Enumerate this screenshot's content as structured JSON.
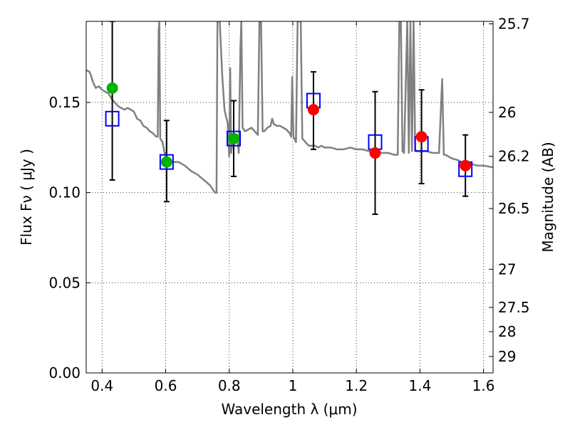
{
  "chart_data": {
    "type": "scatter",
    "xlabel": "Wavelength  λ (μm)",
    "ylabel": "Flux  Fν  ( μJy )",
    "ylabel_right": "Magnitude (AB)",
    "xlim": [
      0.35,
      1.63
    ],
    "ylim": [
      0.0,
      0.195
    ],
    "grid": true,
    "x_ticks": [
      {
        "value": 0.4,
        "label": "0.4"
      },
      {
        "value": 0.6,
        "label": "0.6"
      },
      {
        "value": 0.8,
        "label": "0.8"
      },
      {
        "value": 1.0,
        "label": "1"
      },
      {
        "value": 1.2,
        "label": "1.2"
      },
      {
        "value": 1.4,
        "label": "1.4"
      },
      {
        "value": 1.6,
        "label": "1.6"
      }
    ],
    "y_ticks": [
      {
        "value": 0.0,
        "label": "0.00"
      },
      {
        "value": 0.05,
        "label": "0.05"
      },
      {
        "value": 0.1,
        "label": "0.10"
      },
      {
        "value": 0.15,
        "label": "0.15"
      }
    ],
    "right_ticks": [
      {
        "flux": 0.1936,
        "label": "25.7"
      },
      {
        "flux": 0.1445,
        "label": "26"
      },
      {
        "flux": 0.1202,
        "label": "26.2"
      },
      {
        "flux": 0.0912,
        "label": "26.5"
      },
      {
        "flux": 0.0575,
        "label": "27"
      },
      {
        "flux": 0.0363,
        "label": "27.5"
      },
      {
        "flux": 0.0229,
        "label": "28"
      },
      {
        "flux": 0.0091,
        "label": "29"
      }
    ],
    "series": [
      {
        "kind": "model_spectrum",
        "color": "#808080",
        "points": [
          [
            0.35,
            0.168
          ],
          [
            0.36,
            0.167
          ],
          [
            0.365,
            0.165
          ],
          [
            0.372,
            0.161
          ],
          [
            0.38,
            0.158
          ],
          [
            0.39,
            0.159
          ],
          [
            0.4,
            0.157
          ],
          [
            0.41,
            0.156
          ],
          [
            0.42,
            0.155
          ],
          [
            0.43,
            0.152
          ],
          [
            0.44,
            0.15
          ],
          [
            0.45,
            0.148
          ],
          [
            0.46,
            0.147
          ],
          [
            0.47,
            0.146
          ],
          [
            0.48,
            0.147
          ],
          [
            0.49,
            0.146
          ],
          [
            0.5,
            0.145
          ],
          [
            0.51,
            0.141
          ],
          [
            0.52,
            0.14
          ],
          [
            0.53,
            0.137
          ],
          [
            0.54,
            0.136
          ],
          [
            0.55,
            0.134
          ],
          [
            0.56,
            0.133
          ],
          [
            0.57,
            0.131
          ],
          [
            0.575,
            0.131
          ],
          [
            0.578,
            0.19
          ],
          [
            0.58,
            0.195
          ],
          [
            0.583,
            0.13
          ],
          [
            0.59,
            0.128
          ],
          [
            0.6,
            0.119
          ],
          [
            0.62,
            0.117
          ],
          [
            0.64,
            0.117
          ],
          [
            0.66,
            0.115
          ],
          [
            0.68,
            0.112
          ],
          [
            0.7,
            0.11
          ],
          [
            0.72,
            0.107
          ],
          [
            0.74,
            0.104
          ],
          [
            0.755,
            0.1
          ],
          [
            0.76,
            0.1
          ],
          [
            0.763,
            0.195
          ],
          [
            0.767,
            0.195
          ],
          [
            0.77,
            0.195
          ],
          [
            0.778,
            0.165
          ],
          [
            0.785,
            0.146
          ],
          [
            0.79,
            0.142
          ],
          [
            0.795,
            0.139
          ],
          [
            0.8,
            0.12
          ],
          [
            0.803,
            0.169
          ],
          [
            0.806,
            0.122
          ],
          [
            0.81,
            0.128
          ],
          [
            0.82,
            0.13
          ],
          [
            0.825,
            0.132
          ],
          [
            0.83,
            0.122
          ],
          [
            0.835,
            0.18
          ],
          [
            0.838,
            0.195
          ],
          [
            0.842,
            0.136
          ],
          [
            0.85,
            0.134
          ],
          [
            0.86,
            0.135
          ],
          [
            0.87,
            0.136
          ],
          [
            0.88,
            0.134
          ],
          [
            0.89,
            0.132
          ],
          [
            0.895,
            0.195
          ],
          [
            0.9,
            0.195
          ],
          [
            0.905,
            0.134
          ],
          [
            0.91,
            0.134
          ],
          [
            0.92,
            0.136
          ],
          [
            0.93,
            0.137
          ],
          [
            0.935,
            0.141
          ],
          [
            0.94,
            0.138
          ],
          [
            0.95,
            0.137
          ],
          [
            0.96,
            0.137
          ],
          [
            0.97,
            0.136
          ],
          [
            0.98,
            0.135
          ],
          [
            0.99,
            0.133
          ],
          [
            0.995,
            0.131
          ],
          [
            0.998,
            0.164
          ],
          [
            1.002,
            0.131
          ],
          [
            1.01,
            0.128
          ],
          [
            1.015,
            0.195
          ],
          [
            1.02,
            0.195
          ],
          [
            1.025,
            0.195
          ],
          [
            1.03,
            0.13
          ],
          [
            1.04,
            0.128
          ],
          [
            1.05,
            0.126
          ],
          [
            1.06,
            0.126
          ],
          [
            1.07,
            0.126
          ],
          [
            1.08,
            0.125
          ],
          [
            1.09,
            0.126
          ],
          [
            1.1,
            0.125
          ],
          [
            1.12,
            0.125
          ],
          [
            1.14,
            0.124
          ],
          [
            1.16,
            0.124
          ],
          [
            1.18,
            0.125
          ],
          [
            1.2,
            0.124
          ],
          [
            1.22,
            0.124
          ],
          [
            1.24,
            0.123
          ],
          [
            1.26,
            0.123
          ],
          [
            1.28,
            0.122
          ],
          [
            1.3,
            0.122
          ],
          [
            1.32,
            0.121
          ],
          [
            1.33,
            0.121
          ],
          [
            1.335,
            0.195
          ],
          [
            1.34,
            0.195
          ],
          [
            1.345,
            0.123
          ],
          [
            1.35,
            0.122
          ],
          [
            1.36,
            0.195
          ],
          [
            1.365,
            0.122
          ],
          [
            1.37,
            0.195
          ],
          [
            1.375,
            0.123
          ],
          [
            1.38,
            0.195
          ],
          [
            1.385,
            0.124
          ],
          [
            1.39,
            0.123
          ],
          [
            1.4,
            0.123
          ],
          [
            1.42,
            0.123
          ],
          [
            1.44,
            0.122
          ],
          [
            1.46,
            0.122
          ],
          [
            1.47,
            0.163
          ],
          [
            1.475,
            0.121
          ],
          [
            1.48,
            0.121
          ],
          [
            1.49,
            0.12
          ],
          [
            1.5,
            0.119
          ],
          [
            1.52,
            0.118
          ],
          [
            1.54,
            0.116
          ],
          [
            1.56,
            0.116
          ],
          [
            1.58,
            0.115
          ],
          [
            1.6,
            0.115
          ],
          [
            1.63,
            0.114
          ]
        ]
      },
      {
        "kind": "model_photometry",
        "marker": "open-square",
        "color": "#0000ff",
        "points": [
          [
            0.432,
            0.141
          ],
          [
            0.603,
            0.117
          ],
          [
            0.814,
            0.13
          ],
          [
            1.065,
            0.151
          ],
          [
            1.259,
            0.128
          ],
          [
            1.405,
            0.127
          ],
          [
            1.543,
            0.113
          ]
        ]
      },
      {
        "kind": "observed_green",
        "marker": "circle",
        "color": "#00b300",
        "points": [
          {
            "x": 0.432,
            "y": 0.158,
            "err_low": 0.107,
            "err_high": 0.195
          },
          {
            "x": 0.603,
            "y": 0.117,
            "err_low": 0.095,
            "err_high": 0.14
          },
          {
            "x": 0.814,
            "y": 0.13,
            "err_low": 0.109,
            "err_high": 0.151
          }
        ]
      },
      {
        "kind": "observed_red",
        "marker": "circle",
        "color": "#ff0000",
        "points": [
          {
            "x": 1.065,
            "y": 0.146,
            "err_low": 0.124,
            "err_high": 0.167
          },
          {
            "x": 1.259,
            "y": 0.122,
            "err_low": 0.088,
            "err_high": 0.156
          },
          {
            "x": 1.405,
            "y": 0.131,
            "err_low": 0.105,
            "err_high": 0.157
          },
          {
            "x": 1.543,
            "y": 0.115,
            "err_low": 0.098,
            "err_high": 0.132
          }
        ]
      }
    ]
  }
}
